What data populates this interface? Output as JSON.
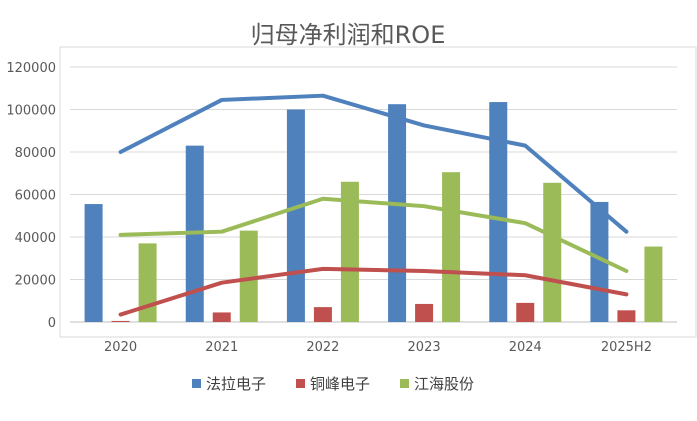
{
  "chart_data": {
    "type": "bar+line",
    "title": "归母净利润和ROE",
    "categories": [
      "2020",
      "2021",
      "2022",
      "2023",
      "2024",
      "2025H2"
    ],
    "ylim": [
      0,
      120000
    ],
    "yticks": [
      0,
      20000,
      40000,
      60000,
      80000,
      100000,
      120000
    ],
    "grid": true,
    "legend_position": "bottom",
    "colors": {
      "法拉电子": "#4F81BD",
      "铜峰电子": "#C0504D",
      "江海股份": "#9BBB59"
    },
    "bar_series": [
      {
        "name": "法拉电子",
        "values": [
          55500,
          83000,
          100000,
          102500,
          103500,
          56500
        ]
      },
      {
        "name": "铜峰电子",
        "values": [
          500,
          4500,
          7000,
          8500,
          9000,
          5500
        ]
      },
      {
        "name": "江海股份",
        "values": [
          37000,
          43000,
          66000,
          70500,
          65500,
          35500
        ]
      }
    ],
    "line_series": [
      {
        "name": "法拉电子",
        "values": [
          80000,
          104500,
          106500,
          92500,
          83000,
          42500
        ]
      },
      {
        "name": "铜峰电子",
        "values": [
          3500,
          18500,
          25000,
          24000,
          22000,
          13000
        ]
      },
      {
        "name": "江海股份",
        "values": [
          41000,
          42500,
          58000,
          54500,
          46500,
          24000
        ]
      }
    ]
  }
}
